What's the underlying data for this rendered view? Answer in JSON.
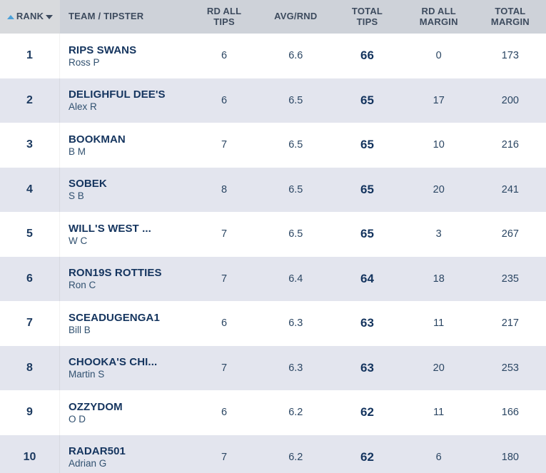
{
  "table": {
    "columns": [
      {
        "key": "rank",
        "label": "RANK"
      },
      {
        "key": "team",
        "label": "TEAM / TIPSTER"
      },
      {
        "key": "rd_all_tips",
        "label": "RD ALL\nTIPS"
      },
      {
        "key": "avg_rnd",
        "label": "AVG/RND"
      },
      {
        "key": "total_tips",
        "label": "TOTAL\nTIPS"
      },
      {
        "key": "rd_all_margin",
        "label": "RD ALL\nMARGIN"
      },
      {
        "key": "total_margin",
        "label": "TOTAL\nMARGIN"
      }
    ],
    "sort": {
      "column": "rank",
      "direction": "ascending"
    },
    "rows": [
      {
        "rank": "1",
        "team": "RIPS SWANS",
        "tipster": "Ross P",
        "rd_all_tips": "6",
        "avg_rnd": "6.6",
        "total_tips": "66",
        "rd_all_margin": "0",
        "total_margin": "173"
      },
      {
        "rank": "2",
        "team": "DELIGHFUL DEE'S",
        "tipster": "Alex R",
        "rd_all_tips": "6",
        "avg_rnd": "6.5",
        "total_tips": "65",
        "rd_all_margin": "17",
        "total_margin": "200"
      },
      {
        "rank": "3",
        "team": "BOOKMAN",
        "tipster": "B M",
        "rd_all_tips": "7",
        "avg_rnd": "6.5",
        "total_tips": "65",
        "rd_all_margin": "10",
        "total_margin": "216"
      },
      {
        "rank": "4",
        "team": "SOBEK",
        "tipster": "S B",
        "rd_all_tips": "8",
        "avg_rnd": "6.5",
        "total_tips": "65",
        "rd_all_margin": "20",
        "total_margin": "241"
      },
      {
        "rank": "5",
        "team": "WILL'S WEST ...",
        "tipster": "W C",
        "rd_all_tips": "7",
        "avg_rnd": "6.5",
        "total_tips": "65",
        "rd_all_margin": "3",
        "total_margin": "267"
      },
      {
        "rank": "6",
        "team": "RON19S ROTTIES",
        "tipster": "Ron C",
        "rd_all_tips": "7",
        "avg_rnd": "6.4",
        "total_tips": "64",
        "rd_all_margin": "18",
        "total_margin": "235"
      },
      {
        "rank": "7",
        "team": "SCEADUGENGA1",
        "tipster": "Bill B",
        "rd_all_tips": "6",
        "avg_rnd": "6.3",
        "total_tips": "63",
        "rd_all_margin": "11",
        "total_margin": "217"
      },
      {
        "rank": "8",
        "team": "CHOOKA'S CHI...",
        "tipster": "Martin S",
        "rd_all_tips": "7",
        "avg_rnd": "6.3",
        "total_tips": "63",
        "rd_all_margin": "20",
        "total_margin": "253"
      },
      {
        "rank": "9",
        "team": "OZZYDOM",
        "tipster": "O D",
        "rd_all_tips": "6",
        "avg_rnd": "6.2",
        "total_tips": "62",
        "rd_all_margin": "11",
        "total_margin": "166"
      },
      {
        "rank": "10",
        "team": "RADAR501",
        "tipster": "Adrian G",
        "rd_all_tips": "7",
        "avg_rnd": "6.2",
        "total_tips": "62",
        "rd_all_margin": "6",
        "total_margin": "180"
      }
    ]
  },
  "colors": {
    "header_bg": "#ced2d9",
    "sorted_header_bg": "#d8dadd",
    "alt_row_bg": "#e3e5ee",
    "header_text": "#3d4b5e",
    "team_text": "#14345e",
    "tipster_text": "#30506f",
    "number_text": "#2b4663",
    "sort_asc_arrow": "#4ba0d8",
    "sort_desc_arrow": "#3d4b5e"
  },
  "icons": {
    "sort_ascending": "triangle-up",
    "sort_descending": "triangle-down"
  }
}
